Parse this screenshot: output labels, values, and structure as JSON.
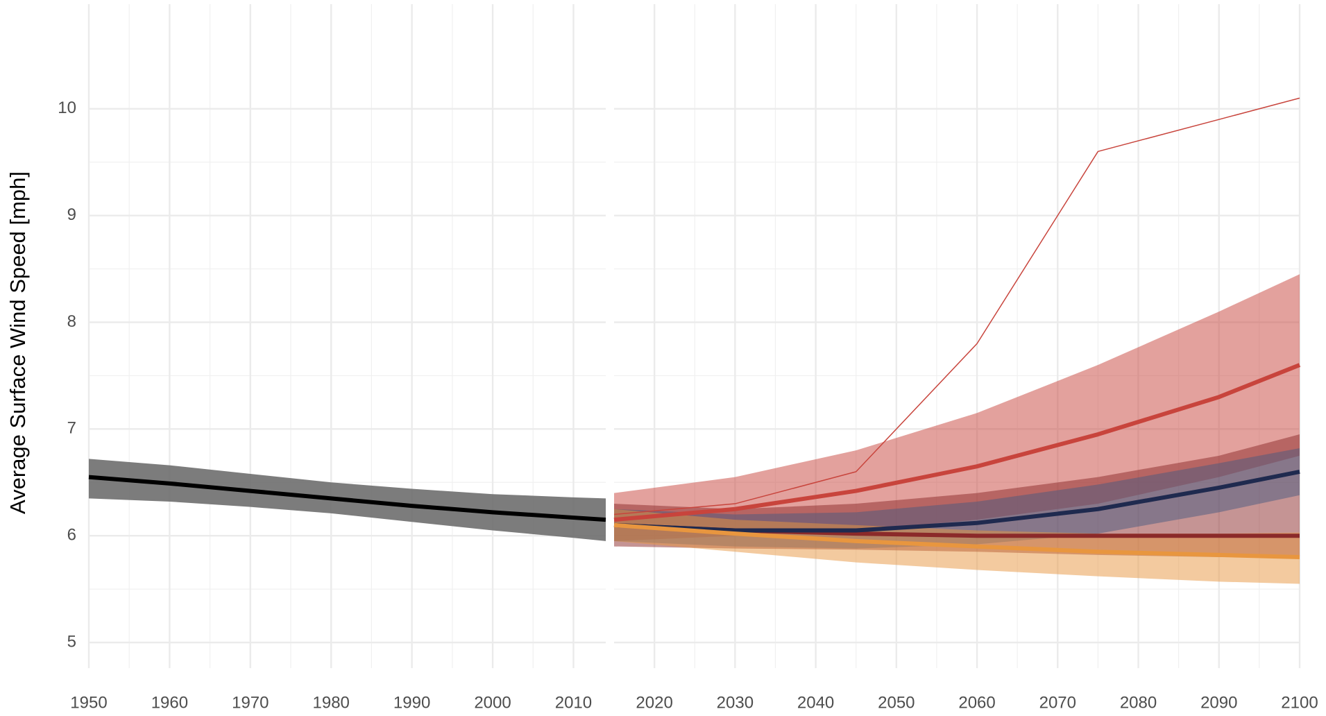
{
  "chart_data": [
    {
      "type": "line",
      "y_label": "Average Surface Wind Speed [mph]",
      "x": [
        1950,
        1960,
        1970,
        1980,
        1990,
        2000,
        2010,
        2014
      ],
      "xlim": [
        1950,
        2014
      ],
      "xticks": [
        1950,
        1960,
        1970,
        1980,
        1990,
        2000,
        2010
      ],
      "ylim": [
        4.76,
        10.98
      ],
      "yticks": [
        5,
        6,
        7,
        8,
        9,
        10
      ],
      "grid": true,
      "series": [
        {
          "color": "#000000",
          "values": [
            6.55,
            6.49,
            6.42,
            6.35,
            6.28,
            6.22,
            6.17,
            6.15
          ],
          "lower": [
            6.35,
            6.32,
            6.27,
            6.21,
            6.13,
            6.05,
            5.98,
            5.95
          ],
          "upper": [
            6.72,
            6.66,
            6.58,
            6.5,
            6.44,
            6.39,
            6.36,
            6.35
          ],
          "band_color": "#6e6e6e"
        }
      ]
    },
    {
      "type": "line",
      "x": [
        2015,
        2030,
        2045,
        2060,
        2075,
        2090,
        2100
      ],
      "xlim": [
        2015,
        2100
      ],
      "xticks": [
        2020,
        2030,
        2040,
        2050,
        2060,
        2070,
        2080,
        2090,
        2100
      ],
      "ylim": [
        4.76,
        10.98
      ],
      "yticks": [
        5,
        6,
        7,
        8,
        9,
        10
      ],
      "grid": true,
      "series": [
        {
          "color": "#c8443c",
          "values": [
            6.2,
            6.3,
            6.6,
            7.8,
            9.6,
            9.9,
            10.1
          ],
          "thin": true
        },
        {
          "color": "#c8443c",
          "values": [
            6.15,
            6.25,
            6.42,
            6.65,
            6.95,
            7.3,
            7.6
          ],
          "lower": [
            5.95,
            6.0,
            6.05,
            6.15,
            6.3,
            6.55,
            6.75
          ],
          "upper": [
            6.4,
            6.55,
            6.8,
            7.15,
            7.6,
            8.1,
            8.45
          ],
          "band_color": "#c8443c"
        },
        {
          "color": "#8b2a2a",
          "values": [
            6.1,
            6.05,
            6.02,
            6.0,
            6.0,
            6.0,
            6.0
          ],
          "lower": [
            5.9,
            5.88,
            5.87,
            5.85,
            5.82,
            5.8,
            5.8
          ],
          "upper": [
            6.3,
            6.25,
            6.3,
            6.4,
            6.55,
            6.75,
            6.95
          ],
          "band_color": "#8b2a2a"
        },
        {
          "color": "#1f2a4f",
          "values": [
            6.1,
            6.05,
            6.05,
            6.12,
            6.25,
            6.45,
            6.6
          ],
          "lower": [
            5.95,
            5.9,
            5.88,
            5.92,
            6.02,
            6.22,
            6.38
          ],
          "upper": [
            6.25,
            6.2,
            6.22,
            6.32,
            6.48,
            6.68,
            6.82
          ],
          "band_color": "#4a5a80"
        },
        {
          "color": "#e8963f",
          "values": [
            6.1,
            6.02,
            5.95,
            5.9,
            5.85,
            5.82,
            5.8
          ],
          "lower": [
            5.95,
            5.85,
            5.75,
            5.68,
            5.62,
            5.57,
            5.55
          ],
          "upper": [
            6.25,
            6.15,
            6.1,
            6.05,
            6.02,
            6.02,
            6.03
          ],
          "band_color": "#e8963f"
        }
      ]
    }
  ]
}
